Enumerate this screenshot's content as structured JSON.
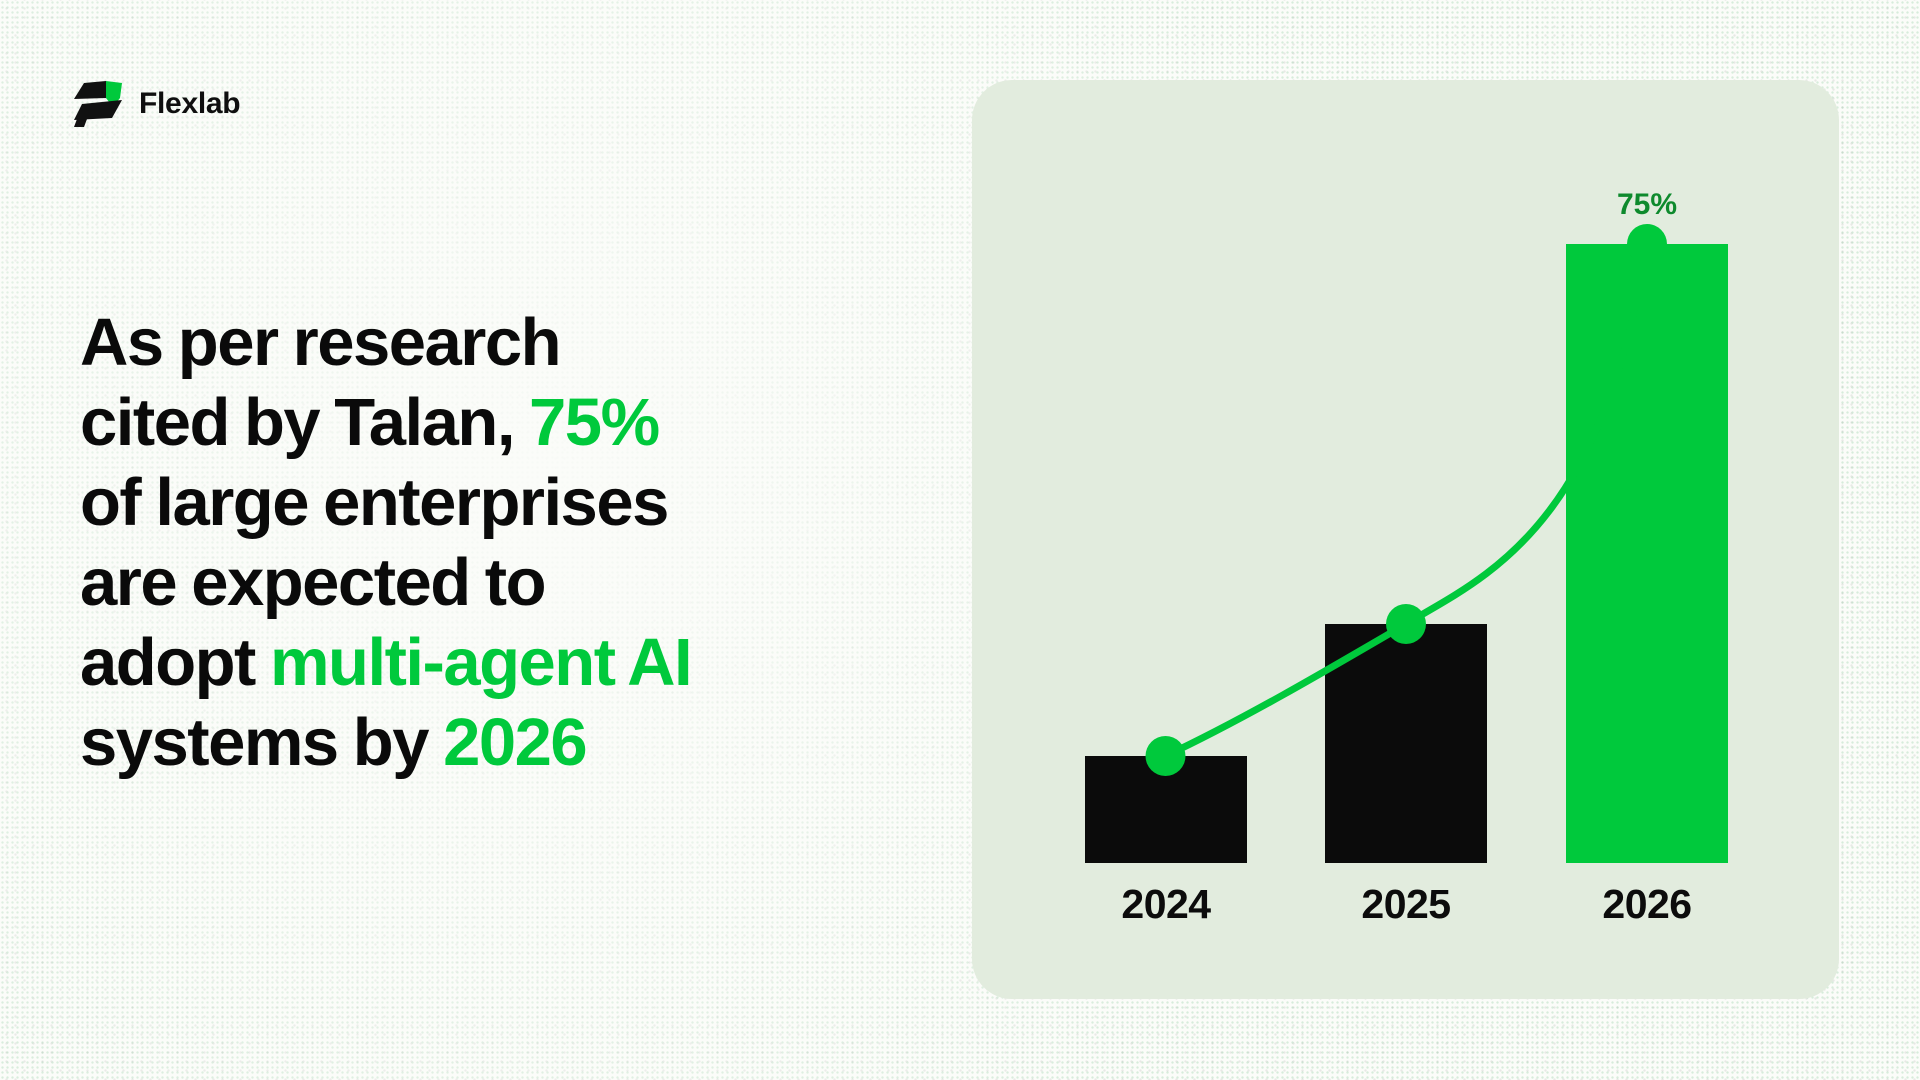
{
  "brand": {
    "name": "Flexlab"
  },
  "headline": {
    "accent_color": "#00C93C",
    "lines": [
      {
        "segments": [
          {
            "text": "As per research",
            "color": "dark"
          }
        ]
      },
      {
        "segments": [
          {
            "text": "cited by Talan, ",
            "color": "dark"
          },
          {
            "text": "75%",
            "color": "green"
          }
        ]
      },
      {
        "segments": [
          {
            "text": "of large enterprises",
            "color": "dark"
          }
        ]
      },
      {
        "segments": [
          {
            "text": "are expected to",
            "color": "dark"
          }
        ]
      },
      {
        "segments": [
          {
            "text": "adopt ",
            "color": "dark"
          },
          {
            "text": "multi-agent AI",
            "color": "green"
          }
        ]
      },
      {
        "segments": [
          {
            "text": "systems by ",
            "color": "dark"
          },
          {
            "text": "2026",
            "color": "green"
          }
        ]
      }
    ]
  },
  "chart_data": {
    "type": "bar",
    "title": "",
    "categories": [
      "2024",
      "2025",
      "2026"
    ],
    "values": [
      13,
      29,
      75
    ],
    "unit": "%",
    "ylim": [
      0,
      80
    ],
    "annotation": "75%",
    "annotated_category": "2026",
    "trend_line": true,
    "markers": "dot at top center of each bar",
    "legend": false,
    "gridlines": false,
    "bar_colors": [
      "#0B0B0B",
      "#0B0B0B",
      "#00C93C"
    ],
    "line_color": "#00C93C",
    "annotation_color": "#0E8A2D",
    "panel_background": "#E2ECDE"
  }
}
